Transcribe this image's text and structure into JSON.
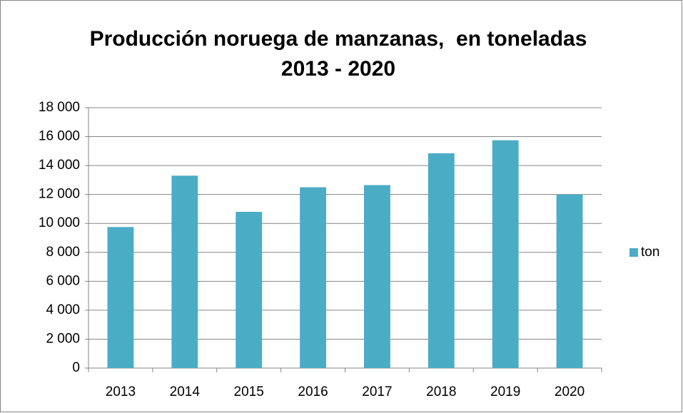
{
  "chart_data": {
    "type": "bar",
    "title": [
      "Producción noruega de manzanas,  en toneladas",
      "2013 - 2020"
    ],
    "categories": [
      "2013",
      "2014",
      "2015",
      "2016",
      "2017",
      "2018",
      "2019",
      "2020"
    ],
    "series": [
      {
        "name": "ton",
        "color": "#4bacc6",
        "values": [
          9750,
          13300,
          10800,
          12500,
          12650,
          14850,
          15750,
          12000
        ]
      }
    ],
    "ylim": [
      0,
      18000
    ],
    "yticks": [
      0,
      {
        "value": 2000,
        "label": "2 000"
      },
      {
        "value": 4000,
        "label": "4 000"
      },
      {
        "value": 6000,
        "label": "6 000"
      },
      {
        "value": 8000,
        "label": "8 000"
      },
      {
        "value": 10000,
        "label": "10 000"
      },
      {
        "value": 12000,
        "label": "12 000"
      },
      {
        "value": 14000,
        "label": "14 000"
      },
      {
        "value": 16000,
        "label": "16 000"
      },
      {
        "value": 18000,
        "label": "18 000"
      }
    ],
    "grid": true,
    "legend": "right"
  }
}
